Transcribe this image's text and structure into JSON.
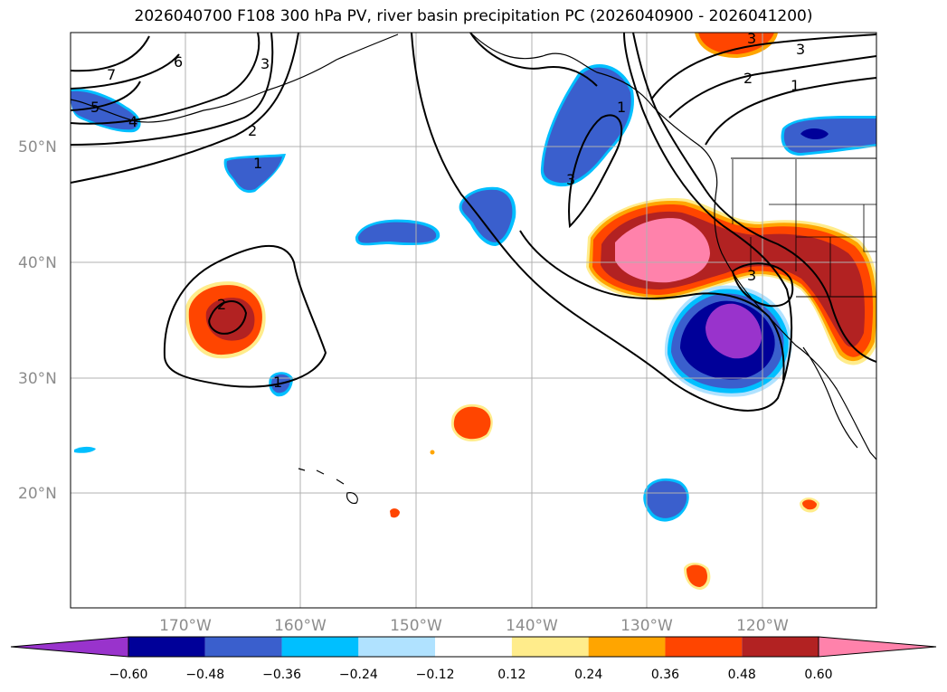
{
  "title": "2026040700 F108 300 hPa PV, river basin precipitation PC (2026040900 - 2026041200)",
  "lat_labels": [
    "50°N",
    "40°N",
    "30°N",
    "20°N"
  ],
  "lon_labels": [
    "170°W",
    "160°W",
    "150°W",
    "140°W",
    "130°W",
    "120°W"
  ],
  "contour_labels": [
    "7",
    "6",
    "3",
    "5",
    "4",
    "2",
    "1",
    "2",
    "1",
    "3",
    "1",
    "3",
    "2",
    "1",
    "3",
    "4",
    "3"
  ],
  "colorbar": {
    "labels": [
      "−0.60",
      "−0.48",
      "−0.36",
      "−0.24",
      "−0.12",
      "0.12",
      "0.24",
      "0.36",
      "0.48",
      "0.60"
    ],
    "colors": [
      "#9933cc",
      "#000099",
      "#3a5fcd",
      "#00bfff",
      "#b0e2ff",
      "#ffffff",
      "#ffec8b",
      "#ffa500",
      "#ff4500",
      "#b22222",
      "#ff82ab"
    ]
  },
  "colors": {
    "purple": "#9933cc",
    "navy": "#000099",
    "royal": "#3a5fcd",
    "sky": "#00bfff",
    "pale_blue": "#b0e2ff",
    "pale_yellow": "#ffec8b",
    "orange": "#ffa500",
    "orange_red": "#ff4500",
    "firebrick": "#b22222",
    "pink": "#ff82ab",
    "gridline": "#b0b0b0"
  }
}
